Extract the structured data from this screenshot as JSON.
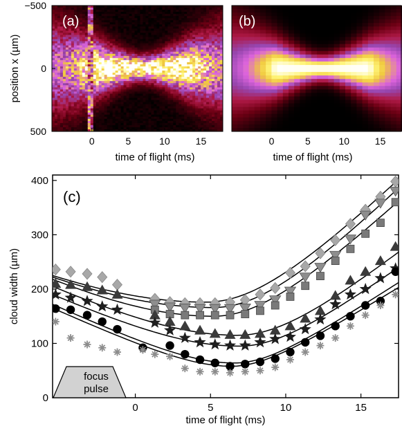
{
  "chart_data": [
    {
      "panel": "(a)",
      "type": "heatmap",
      "xlabel": "time of flight (ms)",
      "ylabel": "position x (µm)",
      "xticks": [
        0,
        5,
        10,
        15
      ],
      "yticks": [
        -500,
        0,
        500
      ],
      "xlim": [
        -5.5,
        18
      ],
      "ylim": [
        -500,
        500
      ],
      "colormap": "black-red-purple-magenta-yellow-white",
      "description_values": {
        "waist_time_ms": 7,
        "cloud_center_x_um": 0
      }
    },
    {
      "panel": "(b)",
      "type": "heatmap",
      "xlabel": "time of flight (ms)",
      "xticks": [
        0,
        5,
        10,
        15
      ],
      "xlim": [
        -5.5,
        18
      ],
      "ylim": [
        -500,
        500
      ],
      "colormap": "black-red-purple-magenta-yellow-white",
      "description_values": {
        "waist_time_ms": 7,
        "cloud_center_x_um": 0
      }
    },
    {
      "panel": "(c)",
      "type": "scatter",
      "xlabel": "time of flight (ms)",
      "ylabel": "cloud width (µm)",
      "xticks": [
        0,
        5,
        10,
        15
      ],
      "yticks": [
        100,
        200,
        300,
        400
      ],
      "xlim": [
        -5.5,
        17.5
      ],
      "ylim": [
        0,
        410
      ],
      "annotation": {
        "label_line1": "focus",
        "label_line2": "pulse"
      },
      "series": [
        {
          "marker": "diamond",
          "color": "#a8a8a8",
          "x": [
            -5.3,
            -4.3,
            -3.2,
            -2.2,
            -1.2,
            1.3,
            2.3,
            3.3,
            4.3,
            5.3,
            6.3,
            7.3,
            8.3,
            9.3,
            10.3,
            11.3,
            12.3,
            13.3,
            14.3,
            15.3,
            16.3,
            17.3
          ],
          "y": [
            236,
            232,
            228,
            222,
            208,
            182,
            176,
            174,
            174,
            174,
            176,
            180,
            190,
            202,
            230,
            242,
            266,
            290,
            320,
            346,
            370,
            398
          ]
        },
        {
          "marker": "triangle-down",
          "color": "#8e8e8e",
          "x": [
            1.3,
            2.3,
            3.3,
            4.3,
            5.3,
            6.3,
            7.3,
            8.3,
            9.3,
            10.3,
            11.3,
            12.3,
            13.3,
            14.3,
            15.3,
            16.3,
            17.3
          ],
          "y": [
            172,
            167,
            165,
            164,
            164,
            164,
            165,
            170,
            180,
            196,
            222,
            240,
            262,
            292,
            336,
            358,
            380
          ]
        },
        {
          "marker": "square",
          "color": "#7a7a7a",
          "x": [
            1.3,
            2.3,
            3.3,
            4.3,
            5.3,
            6.3,
            7.3,
            8.3,
            9.3,
            10.3,
            11.3,
            12.3,
            13.3,
            14.3,
            15.3,
            16.3,
            17.3
          ],
          "y": [
            162,
            154,
            152,
            152,
            152,
            152,
            154,
            160,
            170,
            186,
            206,
            224,
            252,
            274,
            302,
            322,
            360
          ]
        },
        {
          "marker": "triangle-up",
          "color": "#3a3a3a",
          "x": [
            -5.3,
            -4.3,
            -3.2,
            -2.2,
            -1.2,
            1.3,
            2.3,
            3.3,
            4.3,
            5.3,
            6.3,
            7.3,
            8.3,
            9.3,
            10.3,
            11.3,
            12.3,
            13.3,
            14.3,
            15.3,
            16.3,
            17.3
          ],
          "y": [
            210,
            208,
            204,
            198,
            190,
            152,
            140,
            132,
            124,
            118,
            116,
            116,
            118,
            124,
            132,
            146,
            160,
            188,
            216,
            232,
            252,
            278
          ]
        },
        {
          "marker": "star",
          "color": "#1e1e1e",
          "x": [
            -5.3,
            -4.3,
            -3.2,
            -2.2,
            -1.2,
            1.3,
            2.3,
            3.3,
            4.3,
            5.3,
            6.3,
            7.3,
            8.3,
            9.3,
            10.3,
            11.3,
            12.3,
            13.3,
            14.3,
            15.3,
            16.3,
            17.3
          ],
          "y": [
            190,
            184,
            178,
            168,
            162,
            138,
            124,
            110,
            102,
            98,
            96,
            96,
            102,
            108,
            112,
            126,
            144,
            172,
            190,
            200,
            220,
            238
          ]
        },
        {
          "marker": "circle",
          "color": "#000000",
          "x": [
            -5.3,
            -4.3,
            -3.2,
            -2.2,
            -1.2,
            0.5,
            2.3,
            3.3,
            4.3,
            5.3,
            6.3,
            7.3,
            8.3,
            9.3,
            10.3,
            11.3,
            12.3,
            13.3,
            14.3,
            15.3,
            16.3,
            17.3
          ],
          "y": [
            164,
            162,
            152,
            140,
            126,
            92,
            96,
            80,
            70,
            64,
            58,
            62,
            66,
            72,
            84,
            102,
            114,
            132,
            150,
            170,
            178,
            232
          ]
        },
        {
          "marker": "asterisk",
          "color": "#8c8c8c",
          "x": [
            -5.3,
            -4.3,
            -3.2,
            -2.2,
            -1.2,
            0.5,
            1.3,
            2.3,
            3.3,
            4.3,
            5.3,
            6.3,
            7.3,
            8.3,
            9.3,
            10.3,
            11.3,
            12.3,
            13.3,
            14.3,
            15.3,
            16.3,
            17.3
          ],
          "y": [
            140,
            110,
            98,
            92,
            84,
            88,
            80,
            76,
            54,
            48,
            48,
            46,
            48,
            50,
            56,
            70,
            84,
            96,
            110,
            132,
            152,
            170,
            190
          ]
        }
      ],
      "fits": [
        {
          "min_x": 4.7,
          "min_y": 176,
          "x0": -5.5,
          "y0": 225,
          "x1": 17.5,
          "y1": 402
        },
        {
          "min_x": 5.2,
          "min_y": 166,
          "x0": -5.5,
          "y0": 222,
          "x1": 17.5,
          "y1": 386
        },
        {
          "min_x": 5.2,
          "min_y": 150,
          "x0": -5.5,
          "y0": 218,
          "x1": 17.5,
          "y1": 362
        },
        {
          "min_x": 6.8,
          "min_y": 115,
          "x0": -5.5,
          "y0": 205,
          "x1": 17.5,
          "y1": 268
        },
        {
          "min_x": 6.9,
          "min_y": 95,
          "x0": -5.5,
          "y0": 190,
          "x1": 17.5,
          "y1": 240
        },
        {
          "min_x": 6.6,
          "min_y": 64,
          "x0": -5.5,
          "y0": 172,
          "x1": 17.5,
          "y1": 212
        },
        {
          "min_x": 6.4,
          "min_y": 58,
          "x0": -5.5,
          "y0": 165,
          "x1": 17.5,
          "y1": 203
        }
      ]
    }
  ]
}
